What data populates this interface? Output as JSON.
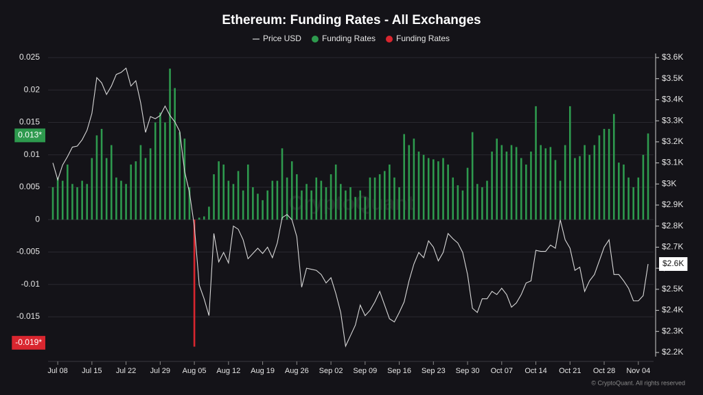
{
  "chart_data": {
    "type": "bar",
    "title": "Ethereum: Funding Rates - All Exchanges",
    "watermark": "CryptoQuant",
    "credit": "© CryptoQuant. All rights reserved",
    "categories": [
      null,
      "Jul 08",
      null,
      null,
      null,
      null,
      null,
      null,
      "Jul 15",
      null,
      null,
      null,
      null,
      null,
      null,
      "Jul 22",
      null,
      null,
      null,
      null,
      null,
      null,
      "Jul 29",
      null,
      null,
      null,
      null,
      null,
      null,
      "Aug 05",
      null,
      null,
      null,
      null,
      null,
      null,
      "Aug 12",
      null,
      null,
      null,
      null,
      null,
      null,
      "Aug 19",
      null,
      null,
      null,
      null,
      null,
      null,
      "Aug 26",
      null,
      null,
      null,
      null,
      null,
      null,
      "Sep 02",
      null,
      null,
      null,
      null,
      null,
      null,
      "Sep 09",
      null,
      null,
      null,
      null,
      null,
      null,
      "Sep 16",
      null,
      null,
      null,
      null,
      null,
      null,
      "Sep 23",
      null,
      null,
      null,
      null,
      null,
      null,
      "Sep 30",
      null,
      null,
      null,
      null,
      null,
      null,
      "Oct 07",
      null,
      null,
      null,
      null,
      null,
      null,
      "Oct 14",
      null,
      null,
      null,
      null,
      null,
      null,
      "Oct 21",
      null,
      null,
      null,
      null,
      null,
      null,
      "Oct 28",
      null,
      null,
      null,
      null,
      null,
      null,
      "Nov 04",
      null,
      null
    ],
    "series": [
      {
        "name": "Price USD",
        "type": "line",
        "axis": "y2",
        "color": "#d9d9d9",
        "values": [
          3100,
          3020,
          3090,
          3130,
          3175,
          3180,
          3210,
          3255,
          3335,
          3505,
          3480,
          3425,
          3465,
          3520,
          3530,
          3550,
          3465,
          3490,
          3385,
          3245,
          3320,
          3310,
          3325,
          3370,
          3325,
          3295,
          3250,
          3060,
          2960,
          2800,
          2520,
          2455,
          2375,
          2765,
          2630,
          2675,
          2625,
          2800,
          2785,
          2735,
          2645,
          2670,
          2695,
          2670,
          2700,
          2650,
          2720,
          2840,
          2855,
          2830,
          2750,
          2510,
          2600,
          2595,
          2590,
          2570,
          2530,
          2555,
          2480,
          2390,
          2230,
          2280,
          2330,
          2425,
          2375,
          2400,
          2440,
          2490,
          2425,
          2360,
          2345,
          2390,
          2440,
          2540,
          2620,
          2675,
          2650,
          2730,
          2700,
          2635,
          2675,
          2765,
          2740,
          2720,
          2675,
          2570,
          2410,
          2390,
          2455,
          2455,
          2490,
          2475,
          2505,
          2475,
          2415,
          2435,
          2475,
          2530,
          2540,
          2685,
          2680,
          2680,
          2710,
          2695,
          2830,
          2735,
          2695,
          2590,
          2605,
          2490,
          2540,
          2570,
          2635,
          2700,
          2735,
          2570,
          2570,
          2540,
          2505,
          2445,
          2445,
          2470,
          2620
        ]
      },
      {
        "name": "Funding Rates",
        "type": "bar",
        "color": "#2e9a4e",
        "values": [
          0.005,
          0.0065,
          0.006,
          0.0085,
          0.0055,
          0.005,
          0.006,
          0.0055,
          0.0095,
          0.013,
          0.014,
          0.0095,
          0.0115,
          0.0065,
          0.006,
          0.0055,
          0.0085,
          0.009,
          0.0115,
          0.0095,
          0.011,
          0.015,
          0.0165,
          0.015,
          0.0233,
          0.0203,
          0.0135,
          0.0125,
          0.005,
          null,
          0.0003,
          0.0005,
          0.002,
          0.007,
          0.009,
          0.0085,
          0.006,
          0.0055,
          0.0075,
          0.0045,
          0.0085,
          0.005,
          0.004,
          0.003,
          0.0045,
          0.006,
          0.006,
          0.011,
          0.0065,
          0.009,
          0.007,
          0.0045,
          0.0055,
          0.0045,
          0.0065,
          0.006,
          0.005,
          0.007,
          0.0085,
          0.0055,
          0.0045,
          0.005,
          0.0035,
          0.0045,
          0.0035,
          0.0065,
          0.0065,
          0.007,
          0.0075,
          0.0085,
          0.0065,
          0.005,
          0.0132,
          0.0115,
          0.0125,
          0.0105,
          0.01,
          0.0095,
          0.0093,
          0.009,
          0.0095,
          0.0085,
          0.0065,
          0.0053,
          0.0045,
          0.008,
          0.0135,
          0.0055,
          0.005,
          0.006,
          0.0105,
          0.0125,
          0.0115,
          0.0105,
          0.0115,
          0.0112,
          0.0095,
          0.0085,
          0.0105,
          0.0175,
          0.0115,
          0.011,
          0.0112,
          0.0092,
          0.006,
          0.0115,
          0.0175,
          0.0095,
          0.0098,
          0.0115,
          0.01,
          0.0115,
          0.013,
          0.014,
          0.014,
          0.0163,
          0.0088,
          0.0085,
          0.0065,
          0.005,
          0.0065,
          0.01,
          0.0133
        ]
      },
      {
        "name": "Funding Rates",
        "type": "bar",
        "color": "#d9262f",
        "values": [
          null,
          null,
          null,
          null,
          null,
          null,
          null,
          null,
          null,
          null,
          null,
          null,
          null,
          null,
          null,
          null,
          null,
          null,
          null,
          null,
          null,
          null,
          null,
          null,
          null,
          null,
          null,
          null,
          null,
          -0.0196,
          null,
          null,
          null,
          null,
          null,
          null,
          null,
          null,
          null,
          null,
          null,
          null,
          null,
          null,
          null,
          null,
          null,
          null,
          null,
          null,
          null,
          null,
          null,
          null,
          null,
          null,
          null,
          null,
          null,
          null,
          null,
          null,
          null,
          null,
          null,
          null,
          null,
          null,
          null,
          null,
          null,
          null,
          null,
          null,
          null,
          null,
          null,
          null,
          null,
          null,
          null,
          null,
          null,
          null,
          null,
          null,
          null,
          null,
          null,
          null,
          null,
          null,
          null,
          null,
          null,
          null,
          null,
          null,
          null,
          null,
          null,
          null,
          null,
          null,
          null,
          null,
          null,
          null,
          null,
          null,
          null,
          null,
          null,
          null,
          null,
          null,
          null,
          null,
          null,
          null,
          null,
          null,
          null
        ]
      }
    ],
    "ylim": [
      -0.0205,
      0.025
    ],
    "yticks": [
      0.025,
      0.02,
      0.015,
      0.01,
      0.005,
      0,
      -0.005,
      -0.01,
      -0.015
    ],
    "y2lim": [
      2200,
      3600
    ],
    "y2ticks": [
      {
        "value": 3600,
        "label": "$3.6K"
      },
      {
        "value": 3500,
        "label": "$3.5K"
      },
      {
        "value": 3400,
        "label": "$3.4K"
      },
      {
        "value": 3300,
        "label": "$3.3K"
      },
      {
        "value": 3200,
        "label": "$3.2K"
      },
      {
        "value": 3100,
        "label": "$3.1K"
      },
      {
        "value": 3000,
        "label": "$3K"
      },
      {
        "value": 2900,
        "label": "$2.9K"
      },
      {
        "value": 2800,
        "label": "$2.8K"
      },
      {
        "value": 2700,
        "label": "$2.7K"
      },
      {
        "value": 2600,
        "label": "$2.6K"
      },
      {
        "value": 2500,
        "label": "$2.5K"
      },
      {
        "value": 2400,
        "label": "$2.4K"
      },
      {
        "value": 2300,
        "label": "$2.3K"
      },
      {
        "value": 2200,
        "label": "$2.2K"
      }
    ],
    "grid": true,
    "legend": "top",
    "annotations": [
      {
        "value": 0.013,
        "label": "0.013*",
        "axis": "y",
        "color": "#2e9a4e"
      },
      {
        "value": -0.019,
        "label": "-0.019*",
        "axis": "y",
        "color": "#d9262f"
      },
      {
        "value": 2620,
        "label": "$2.6K",
        "axis": "y2",
        "color": "#ffffff"
      }
    ]
  }
}
